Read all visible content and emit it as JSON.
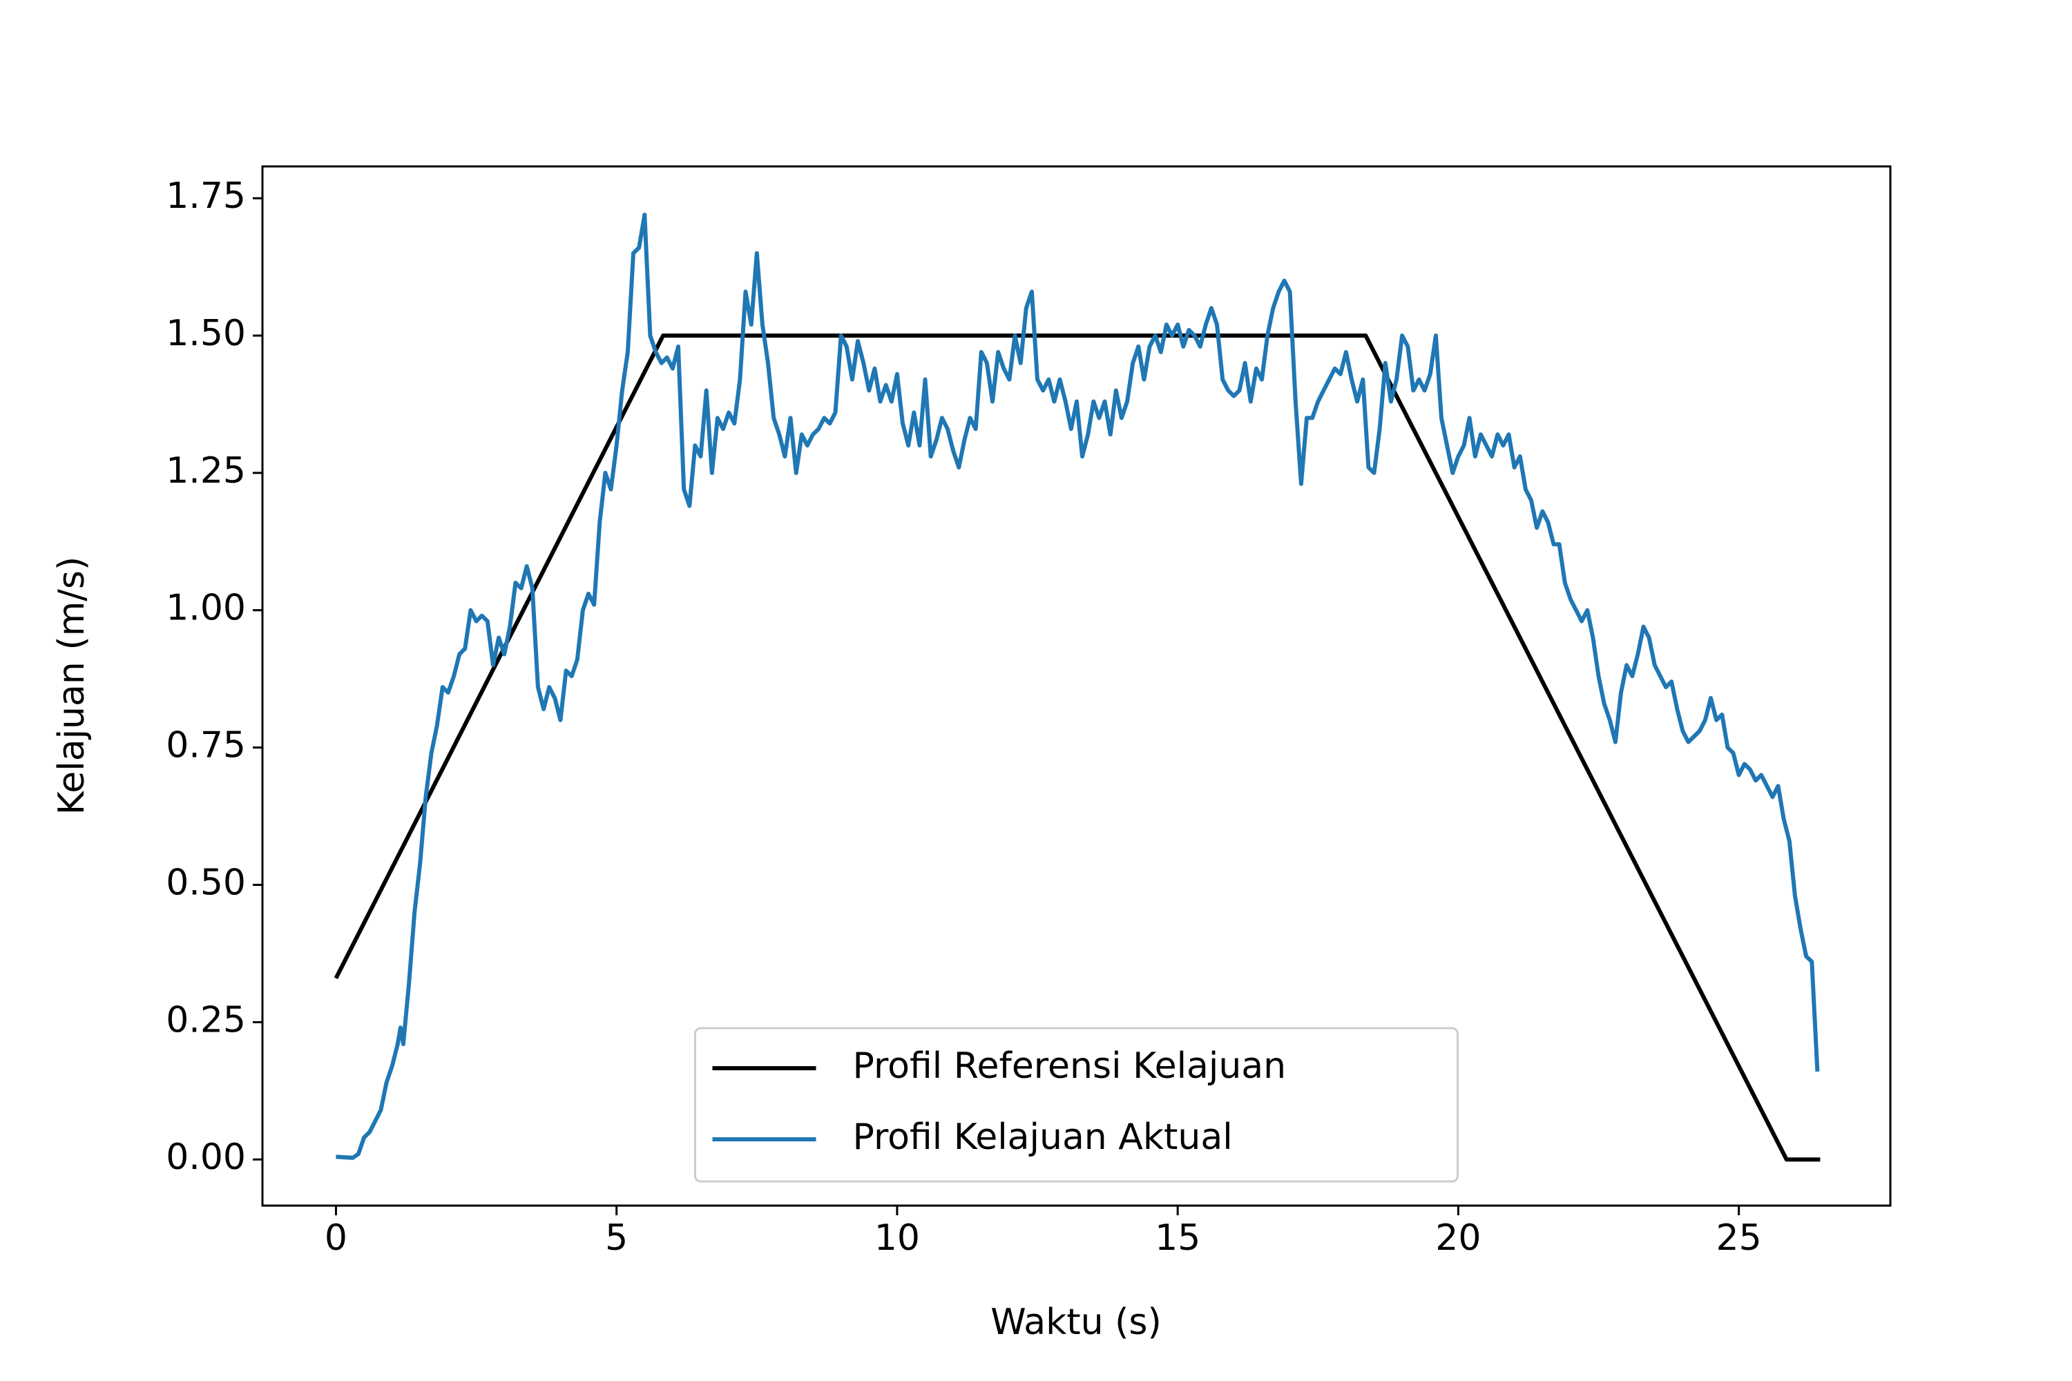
{
  "chart_data": {
    "type": "line",
    "xlabel": "Waktu (s)",
    "ylabel": "Kelajuan (m/s)",
    "xlim": [
      -1.31,
      27.7
    ],
    "ylim": [
      -0.084,
      1.808
    ],
    "xticks": [
      0,
      5,
      10,
      15,
      20,
      25
    ],
    "yticks": [
      {
        "value": 0,
        "label": "0.00"
      },
      0.25,
      {
        "value": 0.5,
        "label": "0.50"
      },
      0.75,
      {
        "value": 1,
        "label": "1.00"
      },
      1.25,
      {
        "value": 1.5,
        "label": "1.50"
      },
      1.75
    ],
    "legend": "lower center",
    "series": [
      {
        "name": "Profil Referensi Kelajuan",
        "color": "#000000",
        "x": [
          0,
          5.83,
          18.35,
          25.85,
          26.45
        ],
        "values": [
          0.33,
          1.5,
          1.5,
          0,
          0
        ]
      },
      {
        "name": "Profil Kelajuan Aktual",
        "color": "#1f77b4",
        "x": [
          0,
          0.3,
          0.4,
          0.5,
          0.6,
          0.7,
          0.8,
          0.9,
          1.0,
          1.1,
          1.15,
          1.2,
          1.3,
          1.4,
          1.5,
          1.6,
          1.7,
          1.8,
          1.9,
          2.0,
          2.1,
          2.2,
          2.3,
          2.4,
          2.5,
          2.6,
          2.7,
          2.8,
          2.9,
          3.0,
          3.1,
          3.2,
          3.3,
          3.4,
          3.5,
          3.6,
          3.7,
          3.8,
          3.9,
          4.0,
          4.1,
          4.2,
          4.3,
          4.4,
          4.5,
          4.6,
          4.7,
          4.8,
          4.9,
          5.0,
          5.1,
          5.2,
          5.3,
          5.4,
          5.5,
          5.6,
          5.7,
          5.8,
          5.9,
          6.0,
          6.1,
          6.2,
          6.3,
          6.4,
          6.5,
          6.6,
          6.7,
          6.8,
          6.9,
          7.0,
          7.1,
          7.2,
          7.3,
          7.4,
          7.5,
          7.6,
          7.7,
          7.8,
          7.9,
          8.0,
          8.1,
          8.2,
          8.3,
          8.4,
          8.5,
          8.6,
          8.7,
          8.8,
          8.9,
          9.0,
          9.1,
          9.2,
          9.3,
          9.4,
          9.5,
          9.6,
          9.7,
          9.8,
          9.9,
          10.0,
          10.1,
          10.2,
          10.3,
          10.4,
          10.5,
          10.6,
          10.7,
          10.8,
          10.9,
          11.0,
          11.1,
          11.2,
          11.3,
          11.4,
          11.5,
          11.6,
          11.7,
          11.8,
          11.9,
          12.0,
          12.1,
          12.2,
          12.3,
          12.4,
          12.5,
          12.6,
          12.7,
          12.8,
          12.9,
          13.0,
          13.1,
          13.2,
          13.3,
          13.4,
          13.5,
          13.6,
          13.7,
          13.8,
          13.9,
          14.0,
          14.1,
          14.2,
          14.3,
          14.4,
          14.5,
          14.6,
          14.7,
          14.8,
          14.9,
          15.0,
          15.1,
          15.2,
          15.3,
          15.4,
          15.5,
          15.6,
          15.7,
          15.8,
          15.9,
          16.0,
          16.1,
          16.2,
          16.3,
          16.4,
          16.5,
          16.6,
          16.7,
          16.8,
          16.9,
          17.0,
          17.1,
          17.2,
          17.3,
          17.4,
          17.5,
          17.6,
          17.7,
          17.8,
          17.9,
          18.0,
          18.1,
          18.2,
          18.3,
          18.4,
          18.5,
          18.6,
          18.7,
          18.8,
          18.9,
          19.0,
          19.1,
          19.2,
          19.3,
          19.4,
          19.5,
          19.6,
          19.7,
          19.8,
          19.9,
          20.0,
          20.1,
          20.2,
          20.3,
          20.4,
          20.5,
          20.6,
          20.7,
          20.8,
          20.9,
          21.0,
          21.1,
          21.2,
          21.3,
          21.4,
          21.5,
          21.6,
          21.7,
          21.8,
          21.9,
          22.0,
          22.1,
          22.2,
          22.3,
          22.4,
          22.5,
          22.6,
          22.7,
          22.8,
          22.9,
          23.0,
          23.1,
          23.2,
          23.3,
          23.4,
          23.5,
          23.6,
          23.7,
          23.8,
          23.9,
          24.0,
          24.1,
          24.2,
          24.3,
          24.4,
          24.5,
          24.6,
          24.7,
          24.8,
          24.9,
          25.0,
          25.1,
          25.2,
          25.3,
          25.4,
          25.5,
          25.6,
          25.7,
          25.8,
          25.9,
          26.0,
          26.1,
          26.2,
          26.3,
          26.4
        ],
        "values": [
          0.005,
          0.003,
          0.01,
          0.04,
          0.05,
          0.07,
          0.09,
          0.14,
          0.17,
          0.21,
          0.24,
          0.21,
          0.32,
          0.45,
          0.54,
          0.66,
          0.74,
          0.79,
          0.86,
          0.85,
          0.88,
          0.92,
          0.93,
          1.0,
          0.98,
          0.99,
          0.98,
          0.9,
          0.95,
          0.92,
          0.97,
          1.05,
          1.04,
          1.08,
          1.04,
          0.86,
          0.82,
          0.86,
          0.84,
          0.8,
          0.89,
          0.88,
          0.91,
          1.0,
          1.03,
          1.01,
          1.16,
          1.25,
          1.22,
          1.3,
          1.4,
          1.47,
          1.65,
          1.66,
          1.72,
          1.5,
          1.47,
          1.45,
          1.46,
          1.44,
          1.48,
          1.22,
          1.19,
          1.3,
          1.28,
          1.4,
          1.25,
          1.35,
          1.33,
          1.36,
          1.34,
          1.42,
          1.58,
          1.52,
          1.65,
          1.52,
          1.45,
          1.35,
          1.32,
          1.28,
          1.35,
          1.25,
          1.32,
          1.3,
          1.32,
          1.33,
          1.35,
          1.34,
          1.36,
          1.5,
          1.48,
          1.42,
          1.49,
          1.45,
          1.4,
          1.44,
          1.38,
          1.41,
          1.38,
          1.43,
          1.34,
          1.3,
          1.36,
          1.3,
          1.42,
          1.28,
          1.31,
          1.35,
          1.33,
          1.29,
          1.26,
          1.31,
          1.35,
          1.33,
          1.47,
          1.45,
          1.38,
          1.47,
          1.44,
          1.42,
          1.5,
          1.45,
          1.55,
          1.58,
          1.42,
          1.4,
          1.42,
          1.38,
          1.42,
          1.38,
          1.33,
          1.38,
          1.28,
          1.32,
          1.38,
          1.35,
          1.38,
          1.32,
          1.4,
          1.35,
          1.38,
          1.45,
          1.48,
          1.42,
          1.48,
          1.5,
          1.47,
          1.52,
          1.5,
          1.52,
          1.48,
          1.51,
          1.5,
          1.48,
          1.52,
          1.55,
          1.52,
          1.42,
          1.4,
          1.39,
          1.4,
          1.45,
          1.38,
          1.44,
          1.42,
          1.5,
          1.55,
          1.58,
          1.6,
          1.58,
          1.38,
          1.23,
          1.35,
          1.35,
          1.38,
          1.4,
          1.42,
          1.44,
          1.43,
          1.47,
          1.42,
          1.38,
          1.42,
          1.26,
          1.25,
          1.33,
          1.45,
          1.38,
          1.42,
          1.5,
          1.48,
          1.4,
          1.42,
          1.4,
          1.43,
          1.5,
          1.35,
          1.3,
          1.25,
          1.28,
          1.3,
          1.35,
          1.28,
          1.32,
          1.3,
          1.28,
          1.32,
          1.3,
          1.32,
          1.26,
          1.28,
          1.22,
          1.2,
          1.15,
          1.18,
          1.16,
          1.12,
          1.12,
          1.05,
          1.02,
          1.0,
          0.98,
          1.0,
          0.95,
          0.88,
          0.83,
          0.8,
          0.76,
          0.85,
          0.9,
          0.88,
          0.92,
          0.97,
          0.95,
          0.9,
          0.88,
          0.86,
          0.87,
          0.82,
          0.78,
          0.76,
          0.77,
          0.78,
          0.8,
          0.84,
          0.8,
          0.81,
          0.75,
          0.74,
          0.7,
          0.72,
          0.71,
          0.69,
          0.7,
          0.68,
          0.66,
          0.68,
          0.62,
          0.58,
          0.48,
          0.42,
          0.37,
          0.36,
          0.16
        ]
      }
    ]
  }
}
